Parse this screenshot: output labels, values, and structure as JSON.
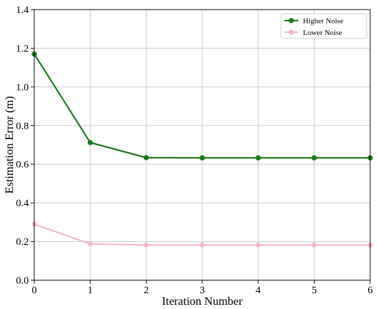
{
  "chart_data": {
    "type": "line",
    "xlabel": "Iteration Number",
    "ylabel": "Estimation Error (m)",
    "xlim": [
      0,
      6
    ],
    "ylim": [
      0,
      1.4
    ],
    "x_ticks": [
      0,
      1,
      2,
      3,
      4,
      5,
      6
    ],
    "y_ticks": [
      0.0,
      0.2,
      0.4,
      0.6,
      0.8,
      1.0,
      1.2,
      1.4
    ],
    "x_tick_labels": [
      "0",
      "1",
      "2",
      "3",
      "4",
      "5",
      "6"
    ],
    "y_tick_labels": [
      "0.0",
      "0.2",
      "0.4",
      "0.6",
      "0.8",
      "1.0",
      "1.2",
      "1.4"
    ],
    "grid": true,
    "legend_position": "top-right",
    "x": [
      0,
      1,
      2,
      3,
      4,
      5,
      6
    ],
    "series": [
      {
        "name": "Higher Noise",
        "color": "#1a7a1a",
        "marker": "circle",
        "values": [
          1.17,
          0.712,
          0.634,
          0.633,
          0.633,
          0.633,
          0.633
        ]
      },
      {
        "name": "Lower Noise",
        "color": "#f4b8c8",
        "marker": "circle",
        "values": [
          0.29,
          0.188,
          0.182,
          0.182,
          0.182,
          0.182,
          0.182
        ]
      }
    ]
  }
}
